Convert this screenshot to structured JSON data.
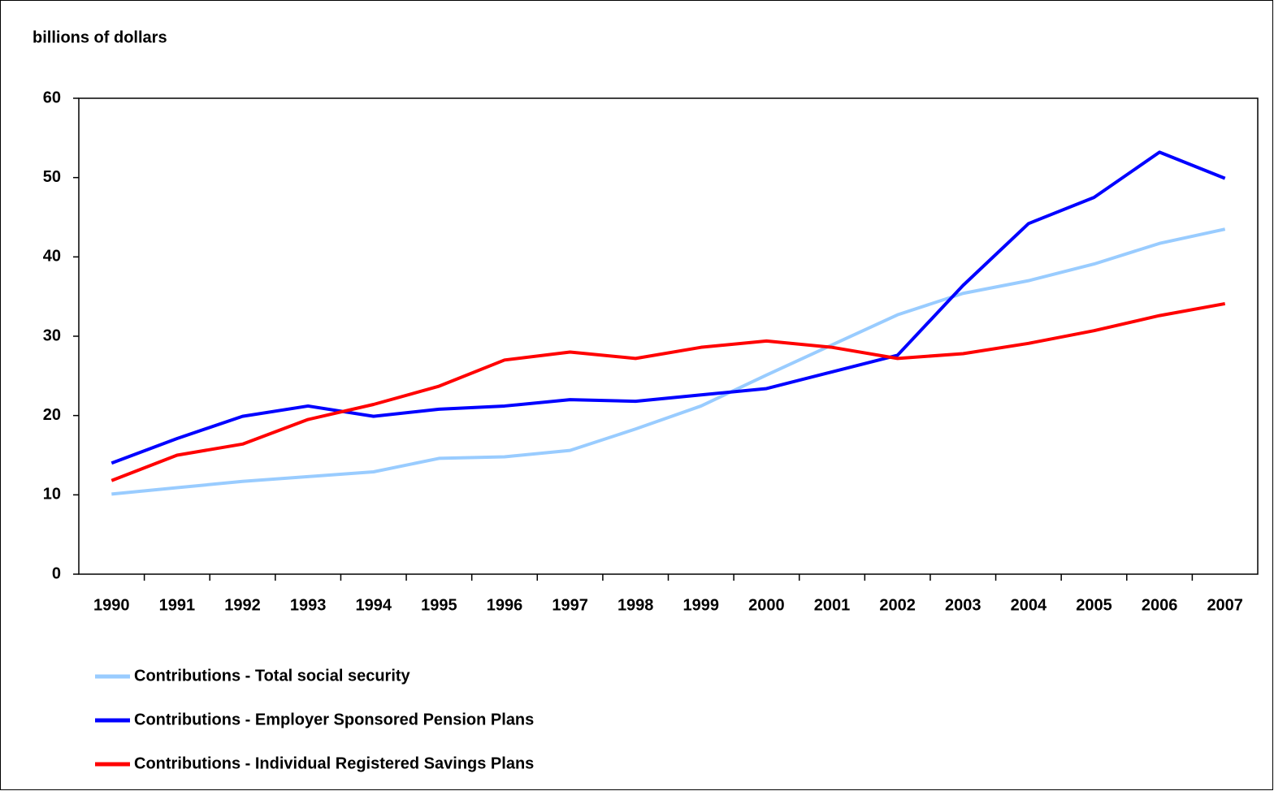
{
  "chart_data": {
    "type": "line",
    "y_axis_label": "billions of dollars",
    "categories": [
      "1990",
      "1991",
      "1992",
      "1993",
      "1994",
      "1995",
      "1996",
      "1997",
      "1998",
      "1999",
      "2000",
      "2001",
      "2002",
      "2003",
      "2004",
      "2005",
      "2006",
      "2007"
    ],
    "series": [
      {
        "name": "Contributions - Total social security",
        "color": "#99ccff",
        "values": [
          10.1,
          10.9,
          11.7,
          12.3,
          12.9,
          14.6,
          14.8,
          15.6,
          18.3,
          21.2,
          25.1,
          28.9,
          32.7,
          35.4,
          37.0,
          39.1,
          41.7,
          43.5
        ]
      },
      {
        "name": "Contributions - Employer Sponsored Pension Plans",
        "color": "#0000ff",
        "values": [
          14.0,
          17.1,
          19.9,
          21.2,
          19.9,
          20.8,
          21.2,
          22.0,
          21.8,
          22.6,
          23.4,
          25.5,
          27.6,
          36.4,
          44.2,
          47.5,
          53.2,
          49.9
        ]
      },
      {
        "name": "Contributions - Individual Registered Savings Plans",
        "color": "#ff0000",
        "values": [
          11.8,
          15.0,
          16.4,
          19.5,
          21.4,
          23.7,
          27.0,
          28.0,
          27.2,
          28.6,
          29.4,
          28.6,
          27.2,
          27.8,
          29.1,
          30.7,
          32.6,
          34.1
        ]
      }
    ],
    "ylim": [
      0,
      60
    ],
    "yticks": [
      0,
      10,
      20,
      30,
      40,
      50,
      60
    ],
    "grid": false,
    "legend": "bottom"
  }
}
